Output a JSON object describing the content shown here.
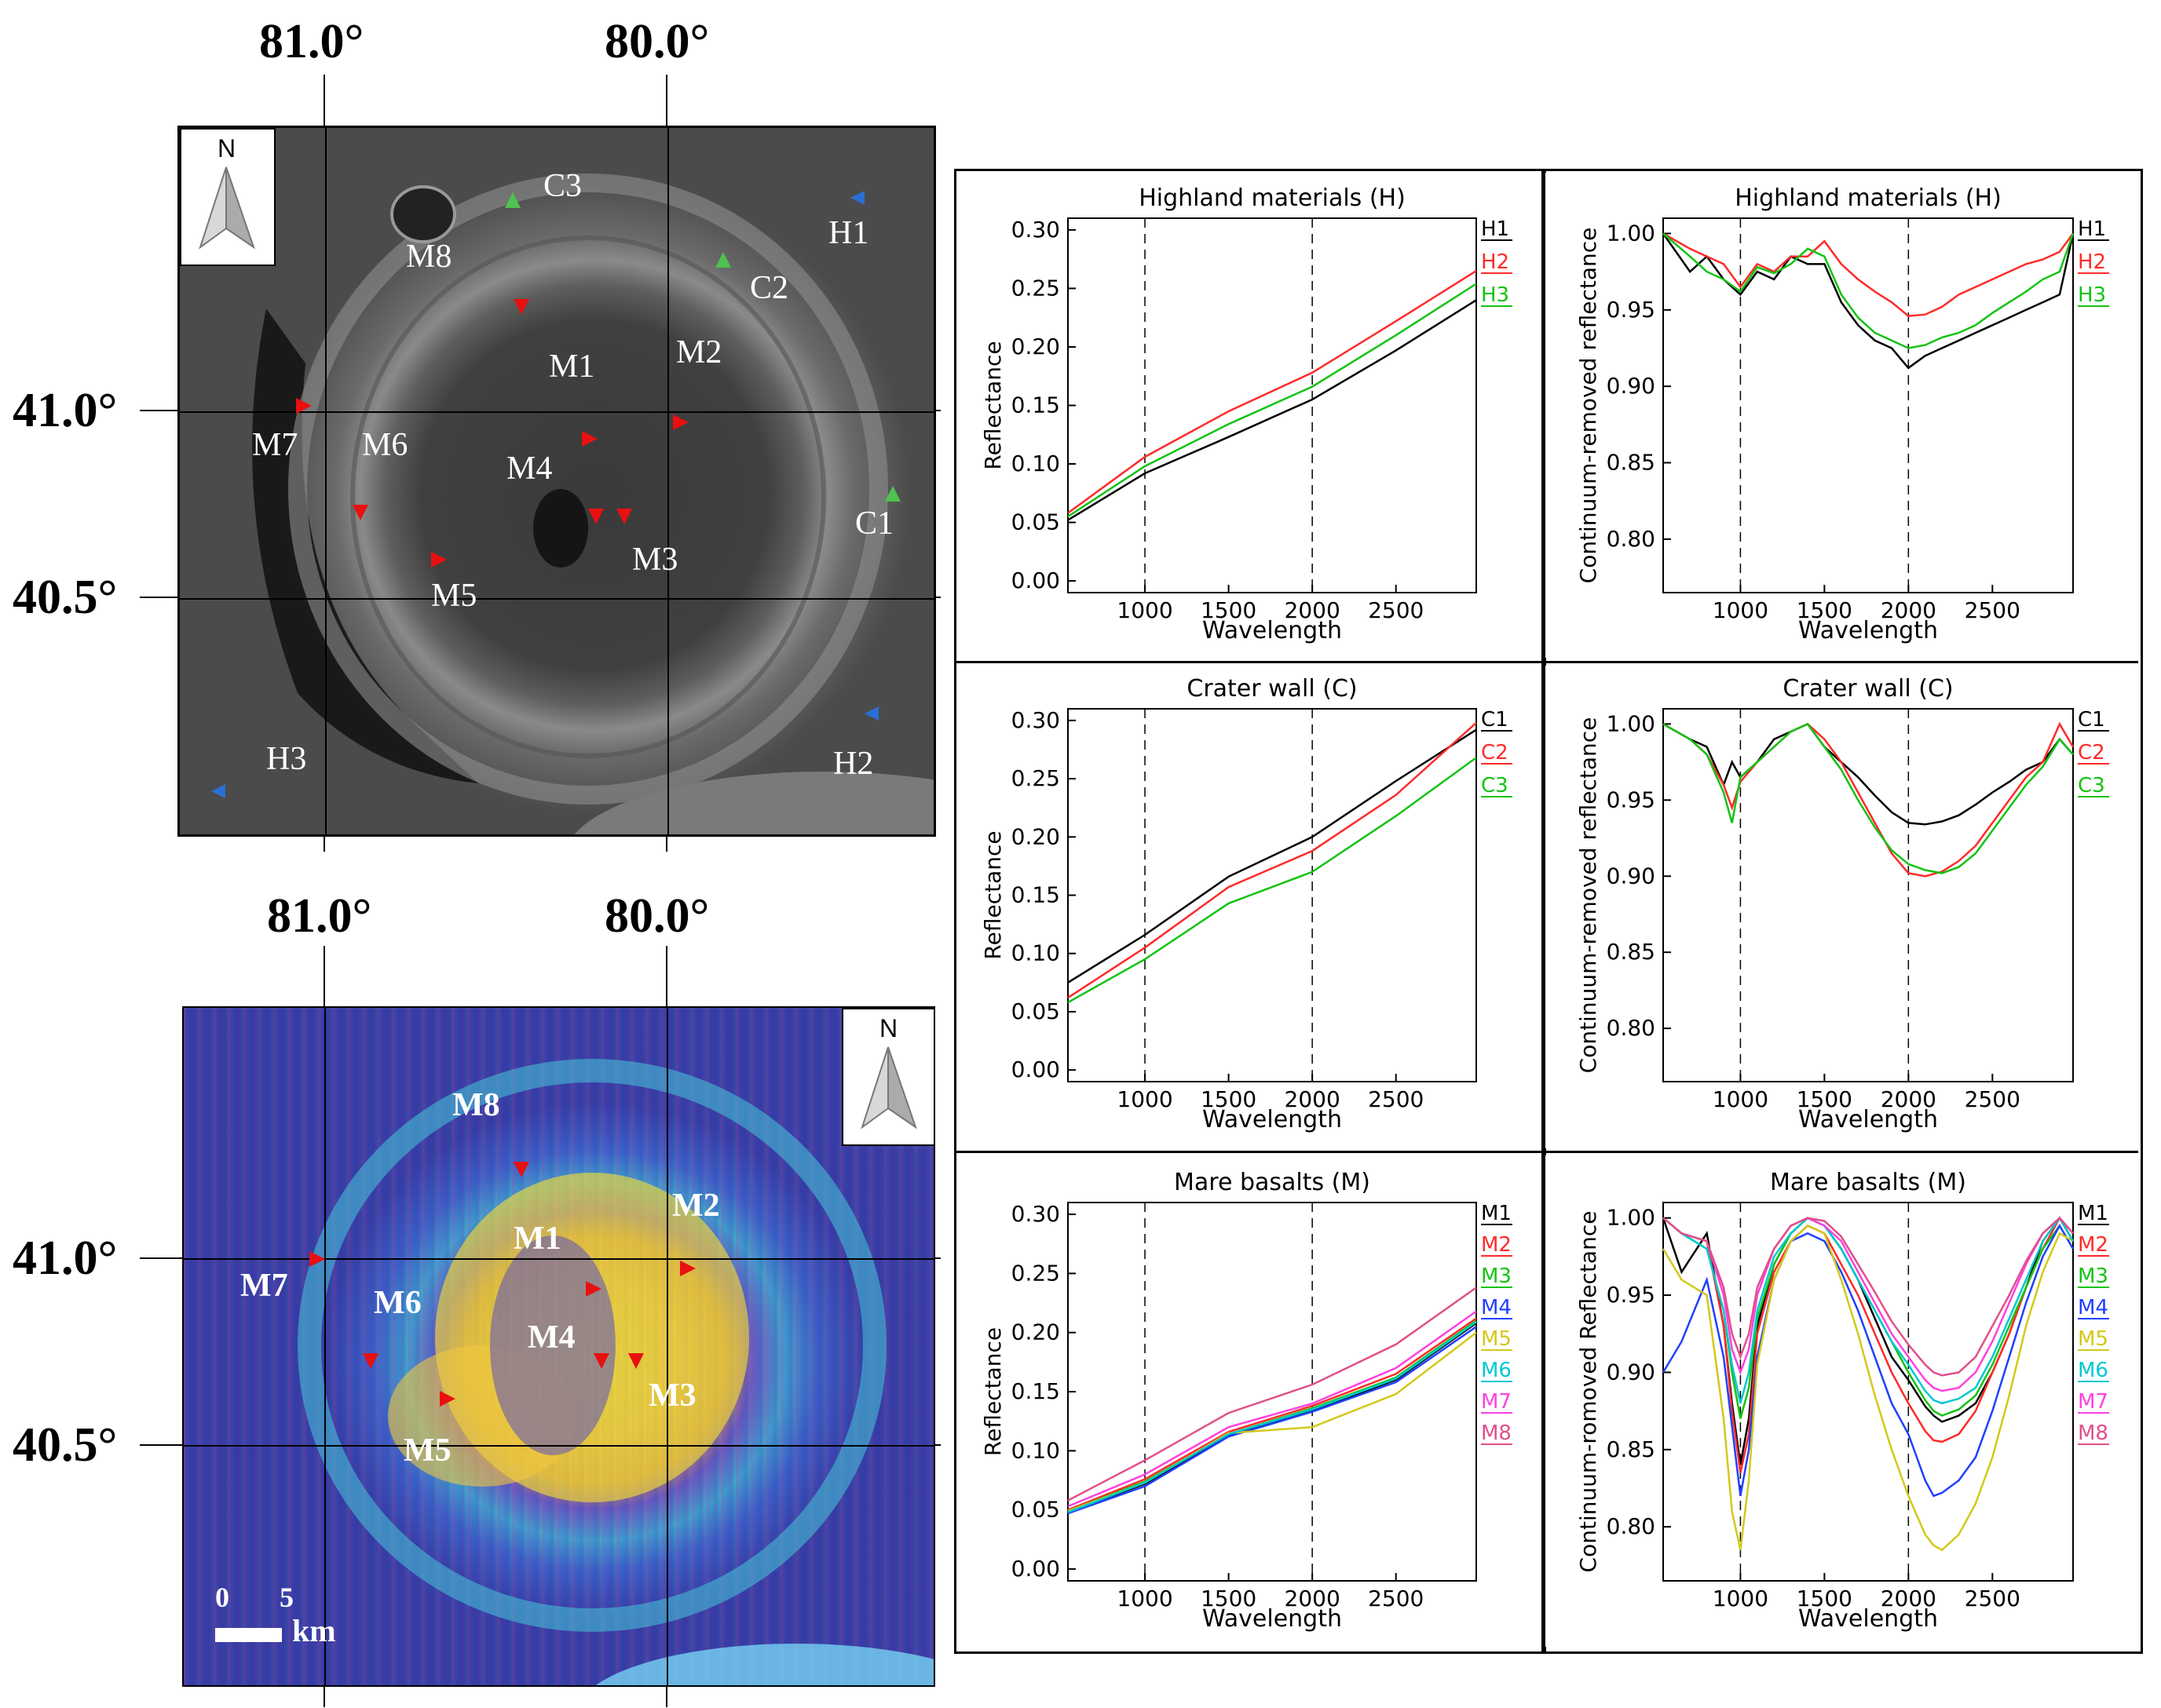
{
  "top_map": {
    "lon_labels": [
      "81.0°",
      "80.0°"
    ],
    "lat_labels": [
      "41.0°",
      "40.5°"
    ],
    "north_label": "N",
    "markers": [
      "C3",
      "H1",
      "M8",
      "C2",
      "M1",
      "M2",
      "M7",
      "M6",
      "M4",
      "C1",
      "M3",
      "M5",
      "H3",
      "H2"
    ]
  },
  "bottom_map": {
    "lon_labels": [
      "81.0°",
      "80.0°"
    ],
    "lat_labels": [
      "41.0°",
      "40.5°"
    ],
    "north_label": "N",
    "markers": [
      "M8",
      "M2",
      "M1",
      "M7",
      "M6",
      "M4",
      "M3",
      "M5"
    ],
    "scale": {
      "zero": "0",
      "five": "5",
      "unit": "km"
    }
  },
  "colors": {
    "black": "#000000",
    "red": "#ff2a2a",
    "green": "#13c313",
    "blue": "#2040ff",
    "yellow": "#d4c81a",
    "cyan": "#00c8d0",
    "magenta": "#ff40e0",
    "pink": "#e0508a",
    "arrow_red": "#e81010",
    "arrow_green": "#4ec24e",
    "arrow_blue": "#2b6fd6"
  },
  "chart_data": [
    {
      "type": "line",
      "title": "Highland materials (H)",
      "xlabel": "Wavelength",
      "ylabel": "Reflectance",
      "xlim": [
        540,
        2980
      ],
      "ylim": [
        -0.01,
        0.31
      ],
      "xticks": [
        "1000",
        "1500",
        "2000",
        "2500"
      ],
      "yticks": [
        "0.00",
        "0.05",
        "0.10",
        "0.15",
        "0.20",
        "0.25",
        "0.30"
      ],
      "vlines": [
        1000,
        2000
      ],
      "x": [
        540,
        1000,
        1500,
        2000,
        2500,
        2980
      ],
      "series": [
        {
          "name": "H1",
          "color": "black",
          "values": [
            0.052,
            0.092,
            0.123,
            0.155,
            0.197,
            0.24
          ]
        },
        {
          "name": "H2",
          "color": "red",
          "values": [
            0.058,
            0.106,
            0.145,
            0.178,
            0.222,
            0.265
          ]
        },
        {
          "name": "H3",
          "color": "green",
          "values": [
            0.055,
            0.098,
            0.134,
            0.166,
            0.21,
            0.254
          ]
        }
      ]
    },
    {
      "type": "line",
      "title": "Highland materials (H)",
      "xlabel": "Wavelength",
      "ylabel": "Continuum-removed reflectance",
      "xlim": [
        540,
        2980
      ],
      "ylim": [
        0.765,
        1.01
      ],
      "xticks": [
        "1000",
        "1500",
        "2000",
        "2500"
      ],
      "yticks": [
        "0.80",
        "0.85",
        "0.90",
        "0.95",
        "1.00"
      ],
      "vlines": [
        1000,
        2000
      ],
      "x": [
        540,
        700,
        800,
        900,
        1000,
        1100,
        1200,
        1300,
        1400,
        1500,
        1600,
        1700,
        1800,
        1900,
        2000,
        2100,
        2200,
        2300,
        2400,
        2500,
        2600,
        2700,
        2800,
        2900,
        2980
      ],
      "series": [
        {
          "name": "H1",
          "color": "black",
          "values": [
            1.0,
            0.975,
            0.985,
            0.97,
            0.96,
            0.975,
            0.97,
            0.985,
            0.98,
            0.98,
            0.955,
            0.94,
            0.93,
            0.925,
            0.912,
            0.92,
            0.925,
            0.93,
            0.935,
            0.94,
            0.945,
            0.95,
            0.955,
            0.96,
            1.0
          ]
        },
        {
          "name": "H2",
          "color": "red",
          "values": [
            1.0,
            0.99,
            0.985,
            0.98,
            0.965,
            0.98,
            0.975,
            0.985,
            0.985,
            0.995,
            0.98,
            0.97,
            0.962,
            0.955,
            0.946,
            0.947,
            0.952,
            0.96,
            0.965,
            0.97,
            0.975,
            0.98,
            0.983,
            0.988,
            1.0
          ]
        },
        {
          "name": "H3",
          "color": "green",
          "values": [
            1.0,
            0.985,
            0.975,
            0.97,
            0.962,
            0.978,
            0.974,
            0.98,
            0.99,
            0.985,
            0.96,
            0.945,
            0.935,
            0.93,
            0.925,
            0.927,
            0.932,
            0.935,
            0.94,
            0.948,
            0.955,
            0.962,
            0.97,
            0.975,
            1.0
          ]
        }
      ]
    },
    {
      "type": "line",
      "title": "Crater wall (C)",
      "xlabel": "Wavelength",
      "ylabel": "Reflectance",
      "xlim": [
        540,
        2980
      ],
      "ylim": [
        -0.01,
        0.31
      ],
      "xticks": [
        "1000",
        "1500",
        "2000",
        "2500"
      ],
      "yticks": [
        "0.00",
        "0.05",
        "0.10",
        "0.15",
        "0.20",
        "0.25",
        "0.30"
      ],
      "vlines": [
        1000,
        2000
      ],
      "x": [
        540,
        1000,
        1500,
        2000,
        2500,
        2980
      ],
      "series": [
        {
          "name": "C1",
          "color": "black",
          "values": [
            0.075,
            0.116,
            0.166,
            0.2,
            0.248,
            0.292
          ]
        },
        {
          "name": "C2",
          "color": "red",
          "values": [
            0.062,
            0.105,
            0.157,
            0.188,
            0.236,
            0.298
          ]
        },
        {
          "name": "C3",
          "color": "green",
          "values": [
            0.058,
            0.095,
            0.143,
            0.17,
            0.218,
            0.268
          ]
        }
      ]
    },
    {
      "type": "line",
      "title": "Crater wall (C)",
      "xlabel": "Wavelength",
      "ylabel": "Continuum-removed reflectance",
      "xlim": [
        540,
        2980
      ],
      "ylim": [
        0.765,
        1.01
      ],
      "xticks": [
        "1000",
        "1500",
        "2000",
        "2500"
      ],
      "yticks": [
        "0.80",
        "0.85",
        "0.90",
        "0.95",
        "1.00"
      ],
      "vlines": [
        1000,
        2000
      ],
      "x": [
        540,
        700,
        800,
        900,
        950,
        1000,
        1100,
        1200,
        1300,
        1400,
        1500,
        1600,
        1700,
        1800,
        1900,
        2000,
        2100,
        2200,
        2300,
        2400,
        2500,
        2600,
        2700,
        2800,
        2900,
        2980
      ],
      "series": [
        {
          "name": "C1",
          "color": "black",
          "values": [
            1.0,
            0.99,
            0.985,
            0.96,
            0.975,
            0.965,
            0.975,
            0.99,
            0.995,
            1.0,
            0.985,
            0.975,
            0.965,
            0.953,
            0.942,
            0.935,
            0.934,
            0.936,
            0.94,
            0.947,
            0.955,
            0.962,
            0.97,
            0.975,
            0.99,
            0.98
          ]
        },
        {
          "name": "C2",
          "color": "red",
          "values": [
            1.0,
            0.99,
            0.98,
            0.96,
            0.945,
            0.962,
            0.975,
            0.985,
            0.995,
            1.0,
            0.99,
            0.975,
            0.955,
            0.935,
            0.915,
            0.902,
            0.9,
            0.903,
            0.91,
            0.92,
            0.935,
            0.95,
            0.965,
            0.975,
            1.0,
            0.985
          ]
        },
        {
          "name": "C3",
          "color": "green",
          "values": [
            1.0,
            0.99,
            0.98,
            0.955,
            0.935,
            0.965,
            0.975,
            0.985,
            0.995,
            1.0,
            0.985,
            0.97,
            0.95,
            0.932,
            0.917,
            0.908,
            0.904,
            0.902,
            0.906,
            0.915,
            0.93,
            0.945,
            0.96,
            0.972,
            0.99,
            0.98
          ]
        }
      ]
    },
    {
      "type": "line",
      "title": "Mare basalts (M)",
      "xlabel": "Wavelength",
      "ylabel": "Reflectance",
      "xlim": [
        540,
        2980
      ],
      "ylim": [
        -0.01,
        0.31
      ],
      "xticks": [
        "1000",
        "1500",
        "2000",
        "2500"
      ],
      "yticks": [
        "0.00",
        "0.05",
        "0.10",
        "0.15",
        "0.20",
        "0.25",
        "0.30"
      ],
      "vlines": [
        1000,
        2000
      ],
      "x": [
        540,
        1000,
        1500,
        2000,
        2500,
        2980
      ],
      "series": [
        {
          "name": "M1",
          "color": "black",
          "values": [
            0.048,
            0.072,
            0.113,
            0.134,
            0.16,
            0.208
          ]
        },
        {
          "name": "M2",
          "color": "red",
          "values": [
            0.05,
            0.076,
            0.116,
            0.138,
            0.165,
            0.212
          ]
        },
        {
          "name": "M3",
          "color": "green",
          "values": [
            0.049,
            0.074,
            0.114,
            0.136,
            0.162,
            0.21
          ]
        },
        {
          "name": "M4",
          "color": "blue",
          "values": [
            0.047,
            0.07,
            0.112,
            0.133,
            0.158,
            0.205
          ]
        },
        {
          "name": "M5",
          "color": "yellow",
          "values": [
            0.049,
            0.073,
            0.115,
            0.12,
            0.148,
            0.2
          ]
        },
        {
          "name": "M6",
          "color": "cyan",
          "values": [
            0.048,
            0.073,
            0.114,
            0.135,
            0.161,
            0.209
          ]
        },
        {
          "name": "M7",
          "color": "magenta",
          "values": [
            0.053,
            0.08,
            0.12,
            0.14,
            0.17,
            0.218
          ]
        },
        {
          "name": "M8",
          "color": "pink",
          "values": [
            0.058,
            0.092,
            0.132,
            0.156,
            0.19,
            0.238
          ]
        }
      ]
    },
    {
      "type": "line",
      "title": "Mare basalts (M)",
      "xlabel": "Wavelength",
      "ylabel": "Continuum-romoved Reflectance",
      "xlim": [
        540,
        2980
      ],
      "ylim": [
        0.765,
        1.01
      ],
      "xticks": [
        "1000",
        "1500",
        "2000",
        "2500"
      ],
      "yticks": [
        "0.80",
        "0.85",
        "0.90",
        "0.95",
        "1.00"
      ],
      "vlines": [
        1000,
        2000
      ],
      "x": [
        540,
        650,
        800,
        900,
        950,
        1000,
        1050,
        1100,
        1200,
        1300,
        1400,
        1500,
        1600,
        1700,
        1800,
        1900,
        2000,
        2100,
        2150,
        2200,
        2300,
        2400,
        2500,
        2600,
        2700,
        2800,
        2900,
        2980
      ],
      "series": [
        {
          "name": "M1",
          "color": "black",
          "values": [
            1.0,
            0.965,
            0.99,
            0.93,
            0.88,
            0.84,
            0.87,
            0.93,
            0.97,
            0.99,
            1.0,
            0.995,
            0.98,
            0.96,
            0.935,
            0.91,
            0.895,
            0.878,
            0.872,
            0.868,
            0.872,
            0.88,
            0.9,
            0.925,
            0.955,
            0.985,
            1.0,
            0.985
          ]
        },
        {
          "name": "M2",
          "color": "red",
          "values": [
            1.0,
            0.99,
            0.985,
            0.93,
            0.875,
            0.835,
            0.86,
            0.925,
            0.965,
            0.985,
            0.995,
            0.99,
            0.97,
            0.95,
            0.925,
            0.9,
            0.88,
            0.862,
            0.856,
            0.855,
            0.86,
            0.875,
            0.9,
            0.925,
            0.955,
            0.98,
            1.0,
            0.99
          ]
        },
        {
          "name": "M3",
          "color": "green",
          "values": [
            1.0,
            0.99,
            0.98,
            0.94,
            0.9,
            0.87,
            0.89,
            0.935,
            0.97,
            0.99,
            1.0,
            0.995,
            0.98,
            0.96,
            0.94,
            0.92,
            0.9,
            0.882,
            0.875,
            0.872,
            0.876,
            0.885,
            0.905,
            0.93,
            0.955,
            0.98,
            0.995,
            0.98
          ]
        },
        {
          "name": "M4",
          "color": "blue",
          "values": [
            0.9,
            0.92,
            0.96,
            0.91,
            0.865,
            0.82,
            0.85,
            0.91,
            0.96,
            0.985,
            0.99,
            0.985,
            0.965,
            0.94,
            0.91,
            0.88,
            0.86,
            0.83,
            0.82,
            0.822,
            0.83,
            0.845,
            0.875,
            0.91,
            0.945,
            0.975,
            0.995,
            0.98
          ]
        },
        {
          "name": "M5",
          "color": "yellow",
          "values": [
            0.98,
            0.96,
            0.95,
            0.87,
            0.81,
            0.785,
            0.83,
            0.905,
            0.96,
            0.985,
            0.995,
            0.99,
            0.96,
            0.925,
            0.885,
            0.85,
            0.82,
            0.795,
            0.788,
            0.785,
            0.795,
            0.815,
            0.845,
            0.885,
            0.93,
            0.965,
            0.99,
            0.985
          ]
        },
        {
          "name": "M6",
          "color": "cyan",
          "values": [
            1.0,
            0.99,
            0.98,
            0.94,
            0.905,
            0.88,
            0.9,
            0.94,
            0.975,
            0.99,
            1.0,
            0.995,
            0.98,
            0.96,
            0.94,
            0.92,
            0.905,
            0.888,
            0.882,
            0.88,
            0.883,
            0.89,
            0.91,
            0.935,
            0.96,
            0.985,
            1.0,
            0.985
          ]
        },
        {
          "name": "M7",
          "color": "magenta",
          "values": [
            1.0,
            0.99,
            0.985,
            0.95,
            0.915,
            0.9,
            0.915,
            0.95,
            0.98,
            0.995,
            1.0,
            0.995,
            0.985,
            0.965,
            0.945,
            0.925,
            0.91,
            0.895,
            0.89,
            0.888,
            0.89,
            0.9,
            0.92,
            0.945,
            0.97,
            0.99,
            1.0,
            0.99
          ]
        },
        {
          "name": "M8",
          "color": "pink",
          "values": [
            1.0,
            0.99,
            0.985,
            0.955,
            0.925,
            0.91,
            0.925,
            0.955,
            0.98,
            0.995,
            1.0,
            0.998,
            0.988,
            0.97,
            0.952,
            0.933,
            0.918,
            0.905,
            0.9,
            0.898,
            0.9,
            0.91,
            0.93,
            0.95,
            0.972,
            0.99,
            1.0,
            0.99
          ]
        }
      ]
    }
  ]
}
